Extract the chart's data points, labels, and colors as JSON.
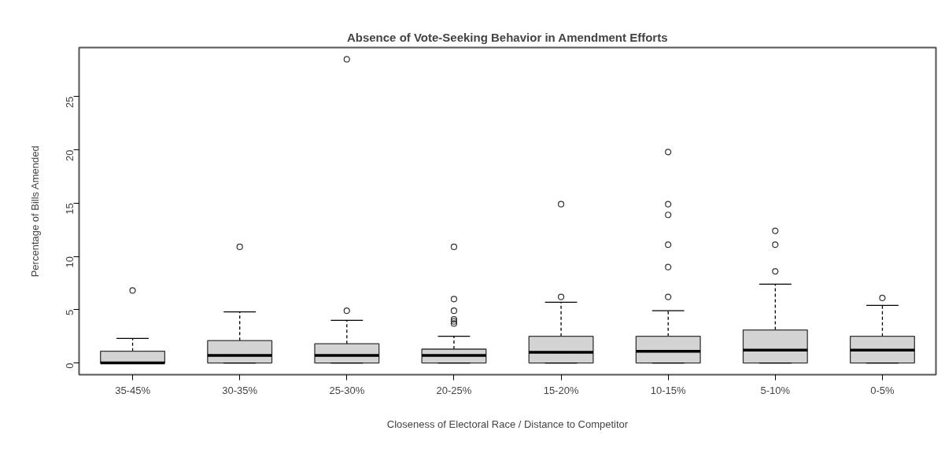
{
  "chart_data": {
    "type": "box",
    "title": "Absence of Vote-Seeking Behavior in Amendment Efforts",
    "xlabel": "Closeness of Electoral Race / Distance to Competitor",
    "ylabel": "Percentage of Bills Amended",
    "categories": [
      "35-45%",
      "30-35%",
      "25-30%",
      "20-25%",
      "15-20%",
      "10-15%",
      "5-10%",
      "0-5%"
    ],
    "color": "#d3d3d3",
    "ylim": [
      -1.1,
      29.6
    ],
    "yticks": [
      0,
      5,
      10,
      15,
      20,
      25
    ],
    "grid": false,
    "marker": "circle",
    "boxes": [
      {
        "low": 0,
        "q1": 0,
        "median": 0,
        "q3": 1.1,
        "high": 2.3,
        "outliers": [
          6.8
        ]
      },
      {
        "low": 0,
        "q1": 0,
        "median": 0.7,
        "q3": 2.1,
        "high": 4.8,
        "outliers": [
          10.9
        ]
      },
      {
        "low": 0,
        "q1": 0,
        "median": 0.7,
        "q3": 1.8,
        "high": 4.0,
        "outliers": [
          4.9,
          28.5
        ]
      },
      {
        "low": 0,
        "q1": 0,
        "median": 0.7,
        "q3": 1.3,
        "high": 2.5,
        "outliers": [
          3.7,
          3.9,
          4.1,
          4.9,
          6.0,
          10.9
        ]
      },
      {
        "low": 0,
        "q1": 0,
        "median": 1.0,
        "q3": 2.5,
        "high": 5.7,
        "outliers": [
          6.2,
          14.9
        ]
      },
      {
        "low": 0,
        "q1": 0,
        "median": 1.1,
        "q3": 2.5,
        "high": 4.9,
        "outliers": [
          6.2,
          9.0,
          11.1,
          13.9,
          14.9,
          19.8
        ]
      },
      {
        "low": 0,
        "q1": 0,
        "median": 1.2,
        "q3": 3.1,
        "high": 7.4,
        "outliers": [
          8.6,
          11.1,
          12.4
        ]
      },
      {
        "low": 0,
        "q1": 0,
        "median": 1.2,
        "q3": 2.5,
        "high": 5.4,
        "outliers": [
          6.1
        ]
      }
    ]
  }
}
